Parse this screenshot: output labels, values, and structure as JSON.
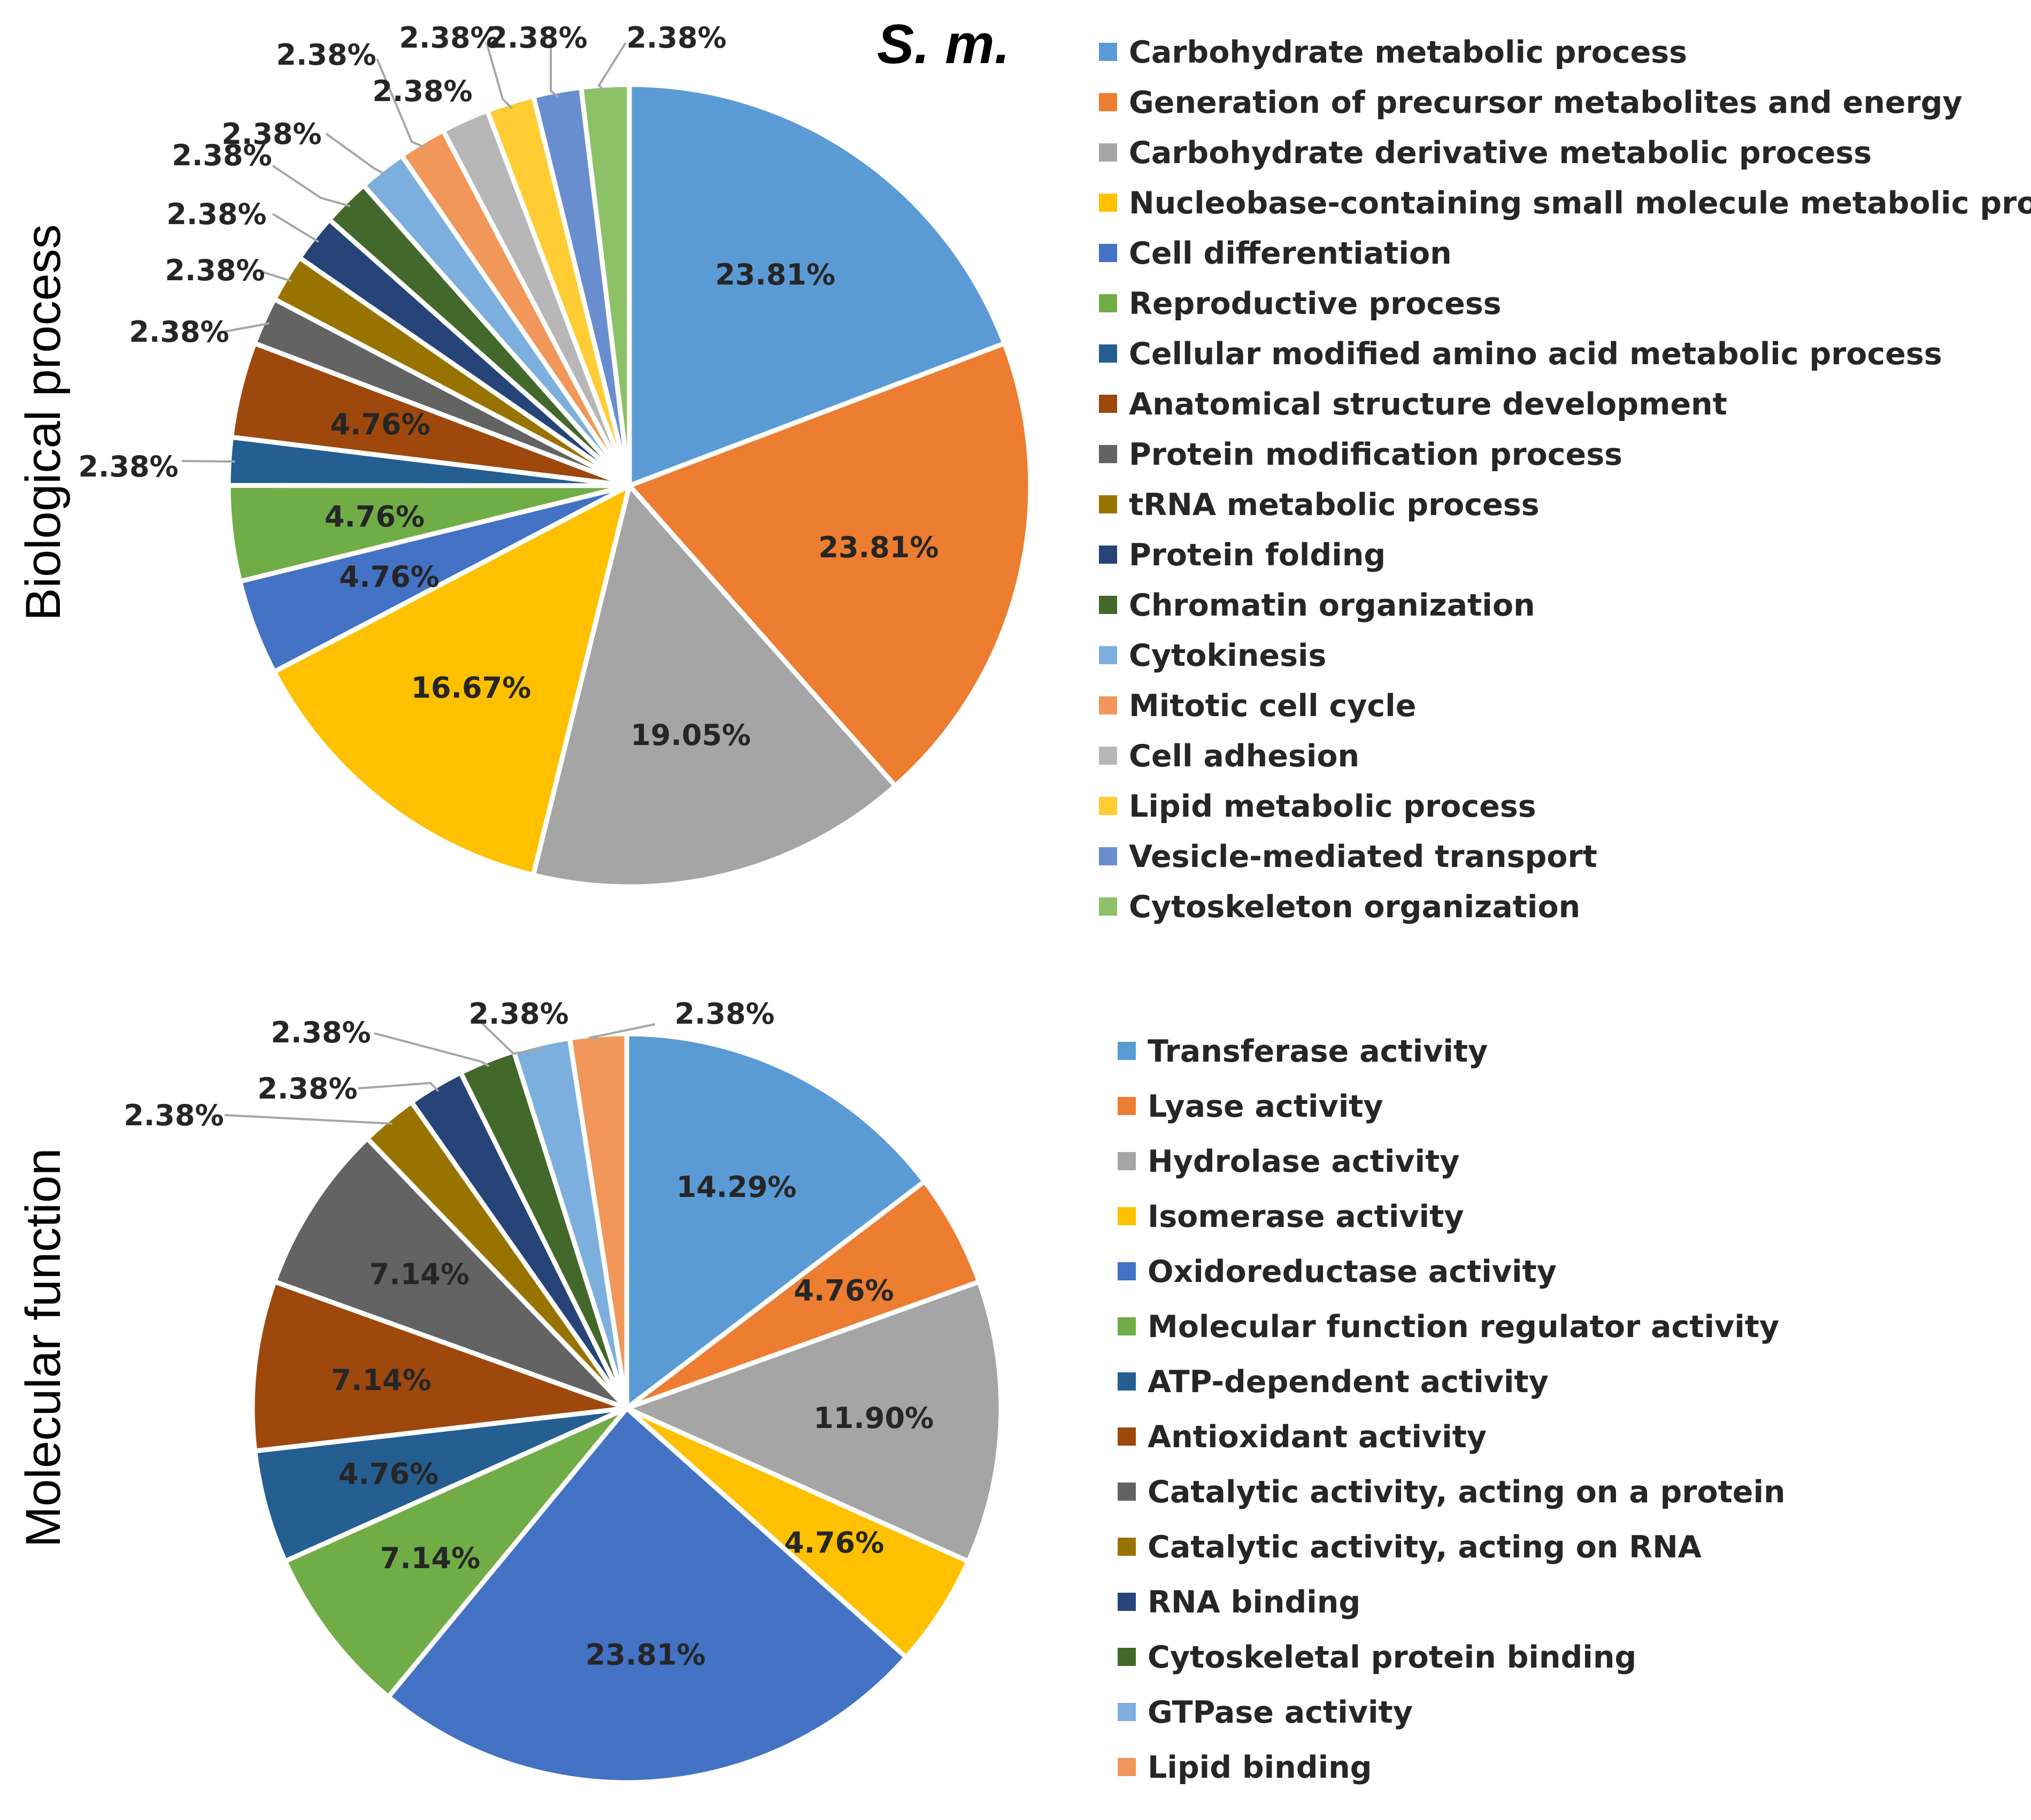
{
  "figure": {
    "species_label": "S. m.",
    "label_color": "#262626",
    "leader_color": "#a6a6a6"
  },
  "chart_data": [
    {
      "type": "pie",
      "title": "Biological process",
      "legend_position": "right",
      "start_angle_deg": 0,
      "direction": "clockwise",
      "unit": "%",
      "slices": [
        {
          "label": "Carbohydrate metabolic process",
          "value": 23.81,
          "display": "23.81%",
          "color": "#5b9bd5",
          "label_style": "inside"
        },
        {
          "label": "Generation of precursor metabolites and energy",
          "value": 23.81,
          "display": "23.81%",
          "color": "#ed7d31",
          "label_style": "inside"
        },
        {
          "label": "Carbohydrate derivative metabolic process",
          "value": 19.05,
          "display": "19.05%",
          "color": "#a5a5a5",
          "label_style": "inside"
        },
        {
          "label": "Nucleobase-containing small molecule metabolic process",
          "value": 16.67,
          "display": "16.67%",
          "color": "#ffc000",
          "label_style": "inside"
        },
        {
          "label": "Cell differentiation",
          "value": 4.76,
          "display": "4.76%",
          "color": "#4472c4",
          "label_style": "inside"
        },
        {
          "label": "Reproductive process",
          "value": 4.76,
          "display": "4.76%",
          "color": "#70ad47",
          "label_style": "inside"
        },
        {
          "label": "Cellular modified amino acid metabolic process",
          "value": 2.38,
          "display": "2.38%",
          "color": "#255e91",
          "label_style": "outside"
        },
        {
          "label": "Anatomical structure development",
          "value": 4.76,
          "display": "4.76%",
          "color": "#9e480e",
          "label_style": "inside"
        },
        {
          "label": "Protein modification process",
          "value": 2.38,
          "display": "2.38%",
          "color": "#636363",
          "label_style": "outside"
        },
        {
          "label": "tRNA metabolic process",
          "value": 2.38,
          "display": "2.38%",
          "color": "#997300",
          "label_style": "outside"
        },
        {
          "label": "Protein folding",
          "value": 2.38,
          "display": "2.38%",
          "color": "#264478",
          "label_style": "outside"
        },
        {
          "label": "Chromatin organization",
          "value": 2.38,
          "display": "2.38%",
          "color": "#43682b",
          "label_style": "outside"
        },
        {
          "label": "Cytokinesis",
          "value": 2.38,
          "display": "2.38%",
          "color": "#7cafdd",
          "label_style": "outside"
        },
        {
          "label": "Mitotic cell cycle",
          "value": 2.38,
          "display": "2.38%",
          "color": "#f1975a",
          "label_style": "outside"
        },
        {
          "label": "Cell adhesion",
          "value": 2.38,
          "display": "2.38%",
          "color": "#b7b7b7",
          "label_style": "outside"
        },
        {
          "label": "Lipid metabolic process",
          "value": 2.38,
          "display": "2.38%",
          "color": "#ffcd33",
          "label_style": "outside"
        },
        {
          "label": "Vesicle-mediated transport",
          "value": 2.38,
          "display": "2.38%",
          "color": "#698ed0",
          "label_style": "outside"
        },
        {
          "label": "Cytoskeleton organization",
          "value": 2.38,
          "display": "2.38%",
          "color": "#8cc168",
          "label_style": "outside"
        }
      ]
    },
    {
      "type": "pie",
      "title": "Molecular function",
      "legend_position": "right",
      "start_angle_deg": 0,
      "direction": "clockwise",
      "unit": "%",
      "slices": [
        {
          "label": "Transferase activity",
          "value": 14.29,
          "display": "14.29%",
          "color": "#5b9bd5",
          "label_style": "inside"
        },
        {
          "label": "Lyase activity",
          "value": 4.76,
          "display": "4.76%",
          "color": "#ed7d31",
          "label_style": "inside"
        },
        {
          "label": "Hydrolase activity",
          "value": 11.9,
          "display": "11.90%",
          "color": "#a5a5a5",
          "label_style": "inside"
        },
        {
          "label": "Isomerase activity",
          "value": 4.76,
          "display": "4.76%",
          "color": "#ffc000",
          "label_style": "inside"
        },
        {
          "label": "Oxidoreductase activity",
          "value": 23.81,
          "display": "23.81%",
          "color": "#4472c4",
          "label_style": "inside"
        },
        {
          "label": "Molecular function regulator activity",
          "value": 7.14,
          "display": "7.14%",
          "color": "#70ad47",
          "label_style": "inside"
        },
        {
          "label": "ATP-dependent activity",
          "value": 4.76,
          "display": "4.76%",
          "color": "#255e91",
          "label_style": "inside"
        },
        {
          "label": "Antioxidant activity",
          "value": 7.14,
          "display": "7.14%",
          "color": "#9e480e",
          "label_style": "inside"
        },
        {
          "label": "Catalytic activity, acting on a protein",
          "value": 7.14,
          "display": "7.14%",
          "color": "#636363",
          "label_style": "inside"
        },
        {
          "label": "Catalytic activity, acting on RNA",
          "value": 2.38,
          "display": "2.38%",
          "color": "#997300",
          "label_style": "outside"
        },
        {
          "label": "RNA binding",
          "value": 2.38,
          "display": "2.38%",
          "color": "#264478",
          "label_style": "outside"
        },
        {
          "label": "Cytoskeletal protein binding",
          "value": 2.38,
          "display": "2.38%",
          "color": "#43682b",
          "label_style": "outside"
        },
        {
          "label": "GTPase activity",
          "value": 2.38,
          "display": "2.38%",
          "color": "#7cafdd",
          "label_style": "outside"
        },
        {
          "label": "Lipid binding",
          "value": 2.38,
          "display": "2.38%",
          "color": "#f1975a",
          "label_style": "outside"
        }
      ]
    }
  ]
}
